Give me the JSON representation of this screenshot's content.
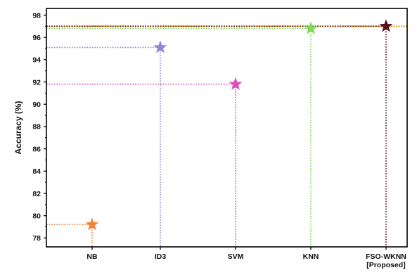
{
  "chart_data": {
    "type": "scatter",
    "title": "",
    "xlabel": "",
    "ylabel": "Accuracy (%)",
    "ylim": [
      77.2,
      98.6
    ],
    "yticks": [
      78,
      80,
      82,
      84,
      86,
      88,
      90,
      92,
      94,
      96,
      98
    ],
    "grid": false,
    "categories": [
      {
        "label": "NB",
        "sublabel": ""
      },
      {
        "label": "ID3",
        "sublabel": ""
      },
      {
        "label": "SVM",
        "sublabel": ""
      },
      {
        "label": "KNN",
        "sublabel": ""
      },
      {
        "label": "FSO-WKNN",
        "sublabel": "[Proposed]"
      }
    ],
    "series": [
      {
        "values": [
          79.2,
          95.1,
          91.8,
          96.8,
          97.0
        ]
      }
    ],
    "marker": "star",
    "reference_line": {
      "value": 97.0,
      "color": "#d4a017"
    },
    "colors": [
      "#f0843c",
      "#8f86d6",
      "#d64fb4",
      "#7ed957",
      "#5a0f14"
    ]
  }
}
